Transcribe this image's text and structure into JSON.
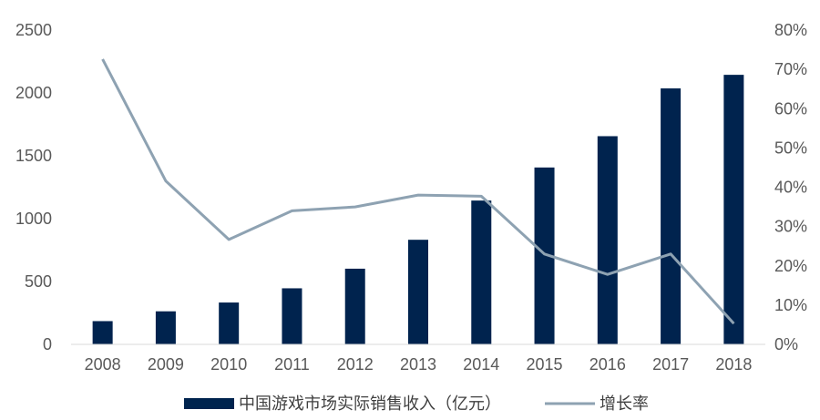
{
  "chart_data": {
    "type": "bar",
    "categories": [
      "2008",
      "2009",
      "2010",
      "2011",
      "2012",
      "2013",
      "2014",
      "2015",
      "2016",
      "2017",
      "2018"
    ],
    "series": [
      {
        "name": "中国游戏市场实际销售收入（亿元）",
        "type": "bar",
        "axis": "left",
        "color": "#00234e",
        "values": [
          185,
          263,
          333,
          446,
          602,
          832,
          1144,
          1407,
          1656,
          2036,
          2144
        ]
      },
      {
        "name": "增长率",
        "type": "line",
        "axis": "right",
        "color": "#8ea2b2",
        "values": [
          0.726,
          0.416,
          0.267,
          0.34,
          0.35,
          0.38,
          0.377,
          0.23,
          0.178,
          0.23,
          0.053
        ]
      }
    ],
    "y_left": {
      "min": 0,
      "max": 2500,
      "ticks": [
        "0",
        "500",
        "1000",
        "1500",
        "2000",
        "2500"
      ]
    },
    "y_right": {
      "min": 0,
      "max": 0.8,
      "ticks": [
        "0%",
        "10%",
        "20%",
        "30%",
        "40%",
        "50%",
        "60%",
        "70%",
        "80%"
      ]
    },
    "grid": false,
    "legend": "bottom"
  }
}
